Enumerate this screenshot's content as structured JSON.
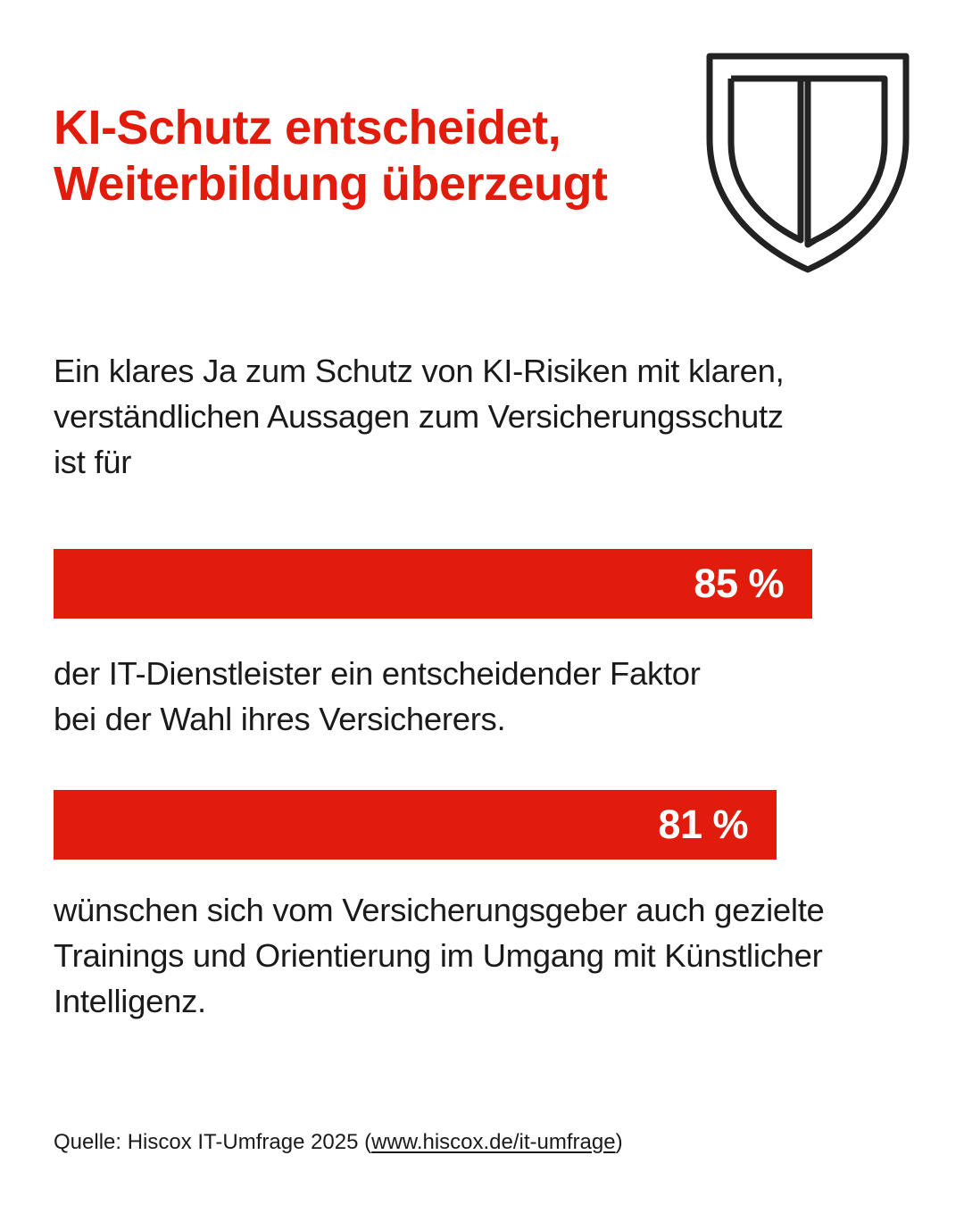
{
  "colors": {
    "accent": "#e21c0c",
    "text": "#1a1a1a",
    "icon_stroke": "#222222",
    "background": "#ffffff"
  },
  "header": {
    "title_lines": [
      "KI-Schutz entscheidet,",
      "Weiterbildung überzeugt"
    ],
    "icon": "shield-icon"
  },
  "intro_lines": [
    "Ein klares Ja zum Schutz von KI-Risiken mit klaren,",
    "verständlichen Aussagen zum Versicherungsschutz",
    "ist für"
  ],
  "chart_data": {
    "type": "bar",
    "orientation": "horizontal",
    "values": [
      85,
      81
    ],
    "value_labels": [
      "85 %",
      "81 %"
    ],
    "unit": "%",
    "xlim": [
      0,
      100
    ],
    "grid": false
  },
  "descriptions": [
    [
      "der IT-Dienstleister ein entscheidender Faktor",
      "bei der Wahl ihres Versicherers."
    ],
    [
      "wünschen sich vom Versicherungsgeber auch gezielte",
      "Trainings und Orientierung im Umgang mit Künstlicher",
      "Intelligenz."
    ]
  ],
  "source": {
    "prefix": "Quelle: Hiscox IT-Umfrage 2025 (",
    "link_text": "www.hiscox.de/it-umfrage",
    "suffix": ")"
  }
}
